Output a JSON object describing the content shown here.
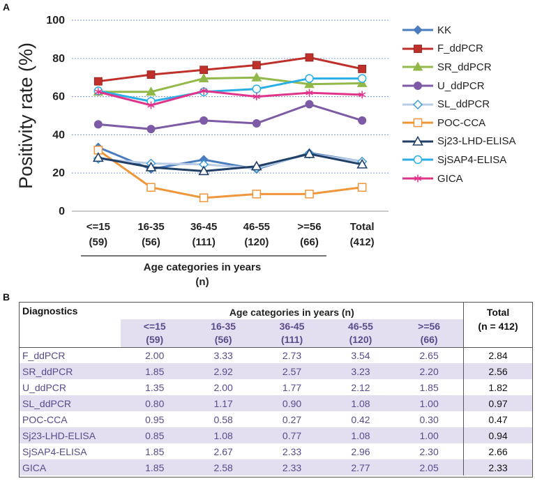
{
  "panels": {
    "a": "A",
    "b": "B"
  },
  "chart_data": {
    "type": "line",
    "ylabel": "Positivity rate (%)",
    "xlabel_line1": "Age categories in years",
    "xlabel_line2": "(n)",
    "ylim": [
      0,
      100
    ],
    "yticks": [
      0,
      20,
      40,
      60,
      80,
      100
    ],
    "categories": [
      {
        "label": "<=15",
        "n": "(59)"
      },
      {
        "label": "16-35",
        "n": "(56)"
      },
      {
        "label": "36-45",
        "n": "(111)"
      },
      {
        "label": "46-55",
        "n": "(120)"
      },
      {
        "label": ">=56",
        "n": "(66)"
      },
      {
        "label": "Total",
        "n": "(412)"
      }
    ],
    "series": [
      {
        "name": "KK",
        "color": "#4a7cc0",
        "marker": "diamond-filled",
        "values": [
          33.5,
          22,
          27,
          22,
          30.5,
          26
        ]
      },
      {
        "name": "F_ddPCR",
        "color": "#c0302a",
        "marker": "square-filled",
        "values": [
          68,
          71.5,
          74,
          76.5,
          80.5,
          74.5
        ]
      },
      {
        "name": "SR_ddPCR",
        "color": "#92b84a",
        "marker": "triangle-filled",
        "values": [
          62.5,
          62.5,
          69.5,
          70,
          66.5,
          67
        ]
      },
      {
        "name": "U_ddPCR",
        "color": "#7c5aa6",
        "marker": "circle-filled",
        "values": [
          45.5,
          43,
          47.5,
          46,
          56,
          47.5
        ]
      },
      {
        "name": "SL_ddPCR",
        "color": "#b8cce6",
        "marker": "diamond-open",
        "values": [
          27.5,
          25,
          24.5,
          22.5,
          30,
          26
        ]
      },
      {
        "name": "POC-CCA",
        "color": "#f0953a",
        "marker": "square-open",
        "values": [
          32,
          12.5,
          7,
          9,
          9,
          12.5
        ]
      },
      {
        "name": "Sj23-LHD-ELISA",
        "color": "#1f3f66",
        "marker": "triangle-open",
        "values": [
          28,
          23,
          21,
          23.5,
          30,
          24.5
        ]
      },
      {
        "name": "SjSAP4-ELISA",
        "color": "#2aaee6",
        "marker": "circle-open",
        "values": [
          63,
          57.5,
          62.5,
          64,
          69.5,
          69.5
        ]
      },
      {
        "name": "GICA",
        "color": "#e0338a",
        "marker": "asterisk",
        "values": [
          62.5,
          55.5,
          63,
          60,
          62,
          61
        ]
      }
    ]
  },
  "table": {
    "header_diagnostics": "Diagnostics",
    "header_group": "Age categories in years (n)",
    "header_total_line1": "Total",
    "header_total_line2": "(n = 412)",
    "columns": [
      {
        "label": "<=15",
        "n": "(59)"
      },
      {
        "label": "16-35",
        "n": "(56)"
      },
      {
        "label": "36-45",
        "n": "(111)"
      },
      {
        "label": "46-55",
        "n": "(120)"
      },
      {
        "label": ">=56",
        "n": "(66)"
      }
    ],
    "rows": [
      {
        "name": "F_ddPCR",
        "values": [
          "2.00",
          "3.33",
          "2.73",
          "3.54",
          "2.65"
        ],
        "total": "2.84"
      },
      {
        "name": "SR_ddPCR",
        "values": [
          "1.85",
          "2.92",
          "2.57",
          "3.23",
          "2.20"
        ],
        "total": "2.56"
      },
      {
        "name": "U_ddPCR",
        "values": [
          "1.35",
          "2.00",
          "1.77",
          "2.12",
          "1.85"
        ],
        "total": "1.82"
      },
      {
        "name": "SL_ddPCR",
        "values": [
          "0.80",
          "1.17",
          "0.90",
          "1.08",
          "1.00"
        ],
        "total": "0.97"
      },
      {
        "name": "POC-CCA",
        "values": [
          "0.95",
          "0.58",
          "0.27",
          "0.42",
          "0.30"
        ],
        "total": "0.47"
      },
      {
        "name": "Sj23-LHD-ELISA",
        "values": [
          "0.85",
          "1.08",
          "0.77",
          "1.08",
          "1.00"
        ],
        "total": "0.94"
      },
      {
        "name": "SjSAP4-ELISA",
        "values": [
          "1.85",
          "2.67",
          "2.33",
          "2.96",
          "2.30"
        ],
        "total": "2.66"
      },
      {
        "name": "GICA",
        "values": [
          "1.85",
          "2.58",
          "2.33",
          "2.77",
          "2.05"
        ],
        "total": "2.33"
      }
    ]
  }
}
